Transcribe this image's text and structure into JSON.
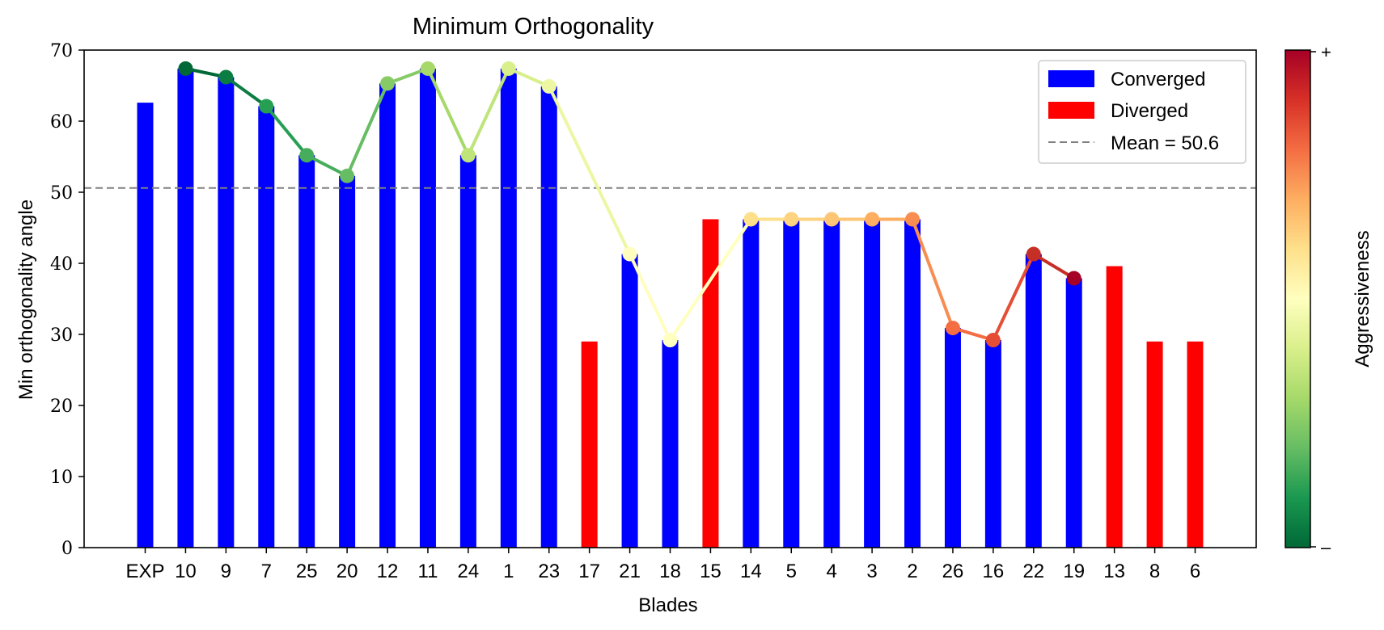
{
  "chart_data": {
    "type": "bar",
    "title": "Minimum Orthogonality",
    "xlabel": "Blades",
    "ylabel": "Min orthogonality angle",
    "ylim": [
      0,
      70
    ],
    "yticks": [
      0,
      10,
      20,
      30,
      40,
      50,
      60,
      70
    ],
    "grid": false,
    "categories": [
      "EXP",
      "10",
      "9",
      "7",
      "25",
      "20",
      "12",
      "11",
      "24",
      "1",
      "23",
      "17",
      "21",
      "18",
      "15",
      "14",
      "5",
      "4",
      "3",
      "2",
      "26",
      "16",
      "22",
      "19",
      "13",
      "8",
      "6"
    ],
    "values": [
      62.6,
      67.4,
      66.2,
      62.1,
      55.2,
      52.3,
      65.3,
      67.4,
      55.2,
      67.4,
      64.9,
      29.0,
      41.3,
      29.2,
      46.2,
      46.2,
      46.2,
      46.2,
      46.2,
      46.2,
      30.9,
      29.2,
      41.3,
      37.9,
      39.6,
      29.0,
      29.0
    ],
    "status": [
      "Converged",
      "Converged",
      "Converged",
      "Converged",
      "Converged",
      "Converged",
      "Converged",
      "Converged",
      "Converged",
      "Converged",
      "Converged",
      "Diverged",
      "Converged",
      "Converged",
      "Diverged",
      "Converged",
      "Converged",
      "Converged",
      "Converged",
      "Converged",
      "Converged",
      "Converged",
      "Converged",
      "Converged",
      "Diverged",
      "Diverged",
      "Diverged"
    ],
    "aggressiveness_line": {
      "categories": [
        "10",
        "9",
        "7",
        "25",
        "20",
        "12",
        "11",
        "24",
        "1",
        "23",
        "21",
        "18",
        "14",
        "5",
        "4",
        "3",
        "2",
        "26",
        "16",
        "22",
        "19"
      ],
      "values": [
        67.4,
        66.2,
        62.1,
        55.2,
        52.3,
        65.3,
        67.4,
        55.2,
        67.4,
        64.9,
        41.3,
        29.2,
        46.2,
        46.2,
        46.2,
        46.2,
        46.2,
        30.9,
        29.2,
        41.3,
        37.9
      ],
      "colors": [
        "#006837",
        "#0b7d42",
        "#279f53",
        "#45ad5b",
        "#66bd63",
        "#86cb66",
        "#a6d96a",
        "#bfe47a",
        "#d9ef8b",
        "#edf7a3",
        "#fffebe",
        "#ffffbf",
        "#fee08b",
        "#fdd380",
        "#fdc574",
        "#fdae61",
        "#f88d52",
        "#f46d43",
        "#e54e35",
        "#c62f26",
        "#a50026"
      ]
    },
    "mean_line": {
      "value": 50.6,
      "color": "#808080"
    },
    "legend": {
      "placement": "top-right",
      "entries": [
        {
          "label": "Converged",
          "color": "#0000ff"
        },
        {
          "label": "Diverged",
          "color": "#ff0000"
        },
        {
          "label": "Mean = 50.6",
          "color": "#808080"
        }
      ]
    },
    "colorbar": {
      "label": "Aggressiveness",
      "top_label": "+",
      "bottom_label": "–",
      "colormap": "RdYlGn_r"
    },
    "colors": {
      "converged": "#0000ff",
      "diverged": "#ff0000"
    }
  }
}
